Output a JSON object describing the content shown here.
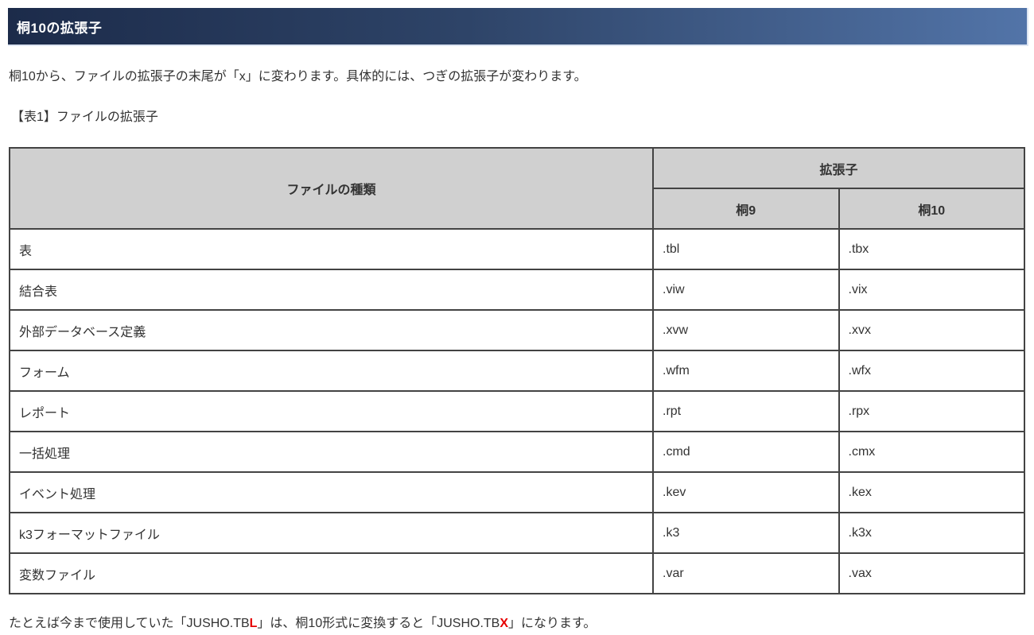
{
  "page": {
    "title": "桐10の拡張子",
    "intro": "桐10から、ファイルの拡張子の末尾が「x」に変わります。具体的には、つぎの拡張子が変わります。",
    "table_caption": "【表1】ファイルの拡張子",
    "footer": {
      "before": "たとえば今まで使用していた「JUSHO.TB",
      "red1": "L",
      "mid": "」は、桐10形式に変換すると「JUSHO.TB",
      "red2": "X",
      "after": "」になります。"
    }
  },
  "table": {
    "headers": {
      "file_type": "ファイルの種類",
      "extension": "拡張子",
      "kiri9": "桐9",
      "kiri10": "桐10"
    },
    "rows": [
      {
        "type": "表",
        "kiri9": ".tbl",
        "kiri10": ".tbx"
      },
      {
        "type": "結合表",
        "kiri9": ".viw",
        "kiri10": ".vix"
      },
      {
        "type": "外部データベース定義",
        "kiri9": ".xvw",
        "kiri10": ".xvx"
      },
      {
        "type": "フォーム",
        "kiri9": ".wfm",
        "kiri10": ".wfx"
      },
      {
        "type": "レポート",
        "kiri9": ".rpt",
        "kiri10": ".rpx"
      },
      {
        "type": "一括処理",
        "kiri9": ".cmd",
        "kiri10": ".cmx"
      },
      {
        "type": "イベント処理",
        "kiri9": ".kev",
        "kiri10": ".kex"
      },
      {
        "type": "k3フォーマットファイル",
        "kiri9": ".k3",
        "kiri10": ".k3x"
      },
      {
        "type": "変数ファイル",
        "kiri9": ".var",
        "kiri10": ".vax"
      }
    ]
  },
  "colors": {
    "title_bar_gradient_start": "#1c2b4a",
    "title_bar_gradient_end": "#5274a8",
    "title_text": "#ffffff",
    "table_header_bg": "#d0d0d0",
    "table_border": "#434343",
    "body_text": "#333333",
    "highlight_red": "#e60000"
  }
}
